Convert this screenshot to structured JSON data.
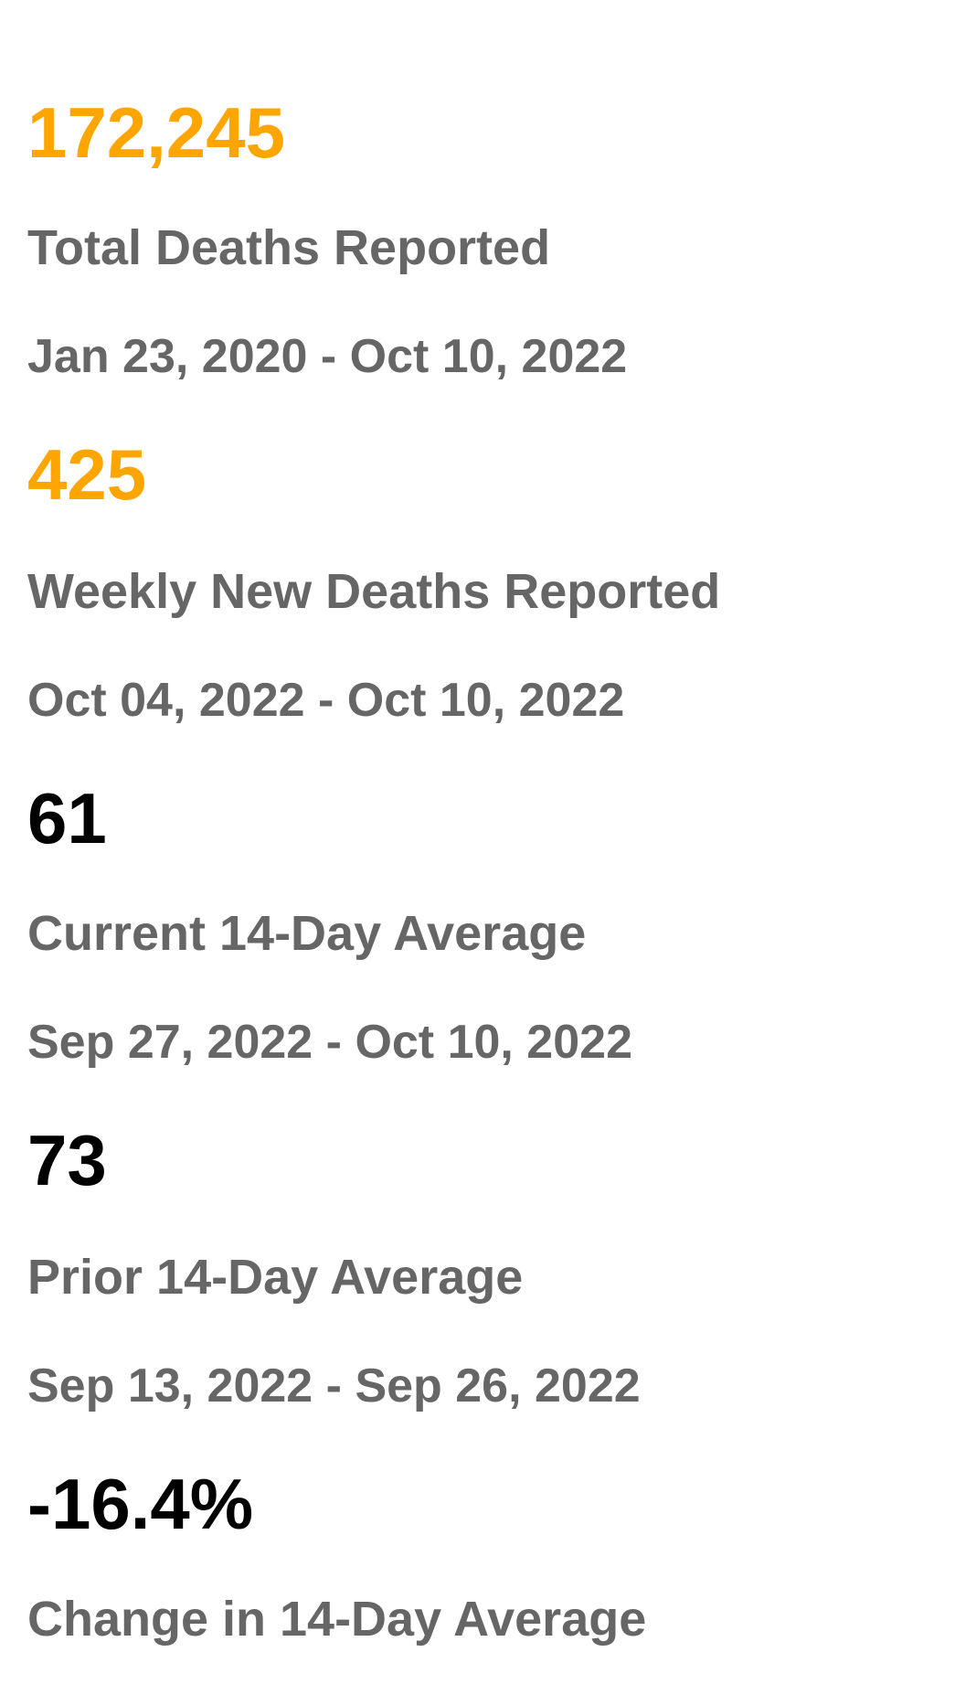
{
  "colors": {
    "highlight": "#FFA500",
    "neutral": "#000000",
    "muted": "#666666"
  },
  "stats": [
    {
      "value": "172,245",
      "label": "Total Deaths Reported",
      "range": "Jan 23, 2020 - Oct 10, 2022",
      "highlight": true
    },
    {
      "value": "425",
      "label": "Weekly New Deaths Reported",
      "range": "Oct 04, 2022 - Oct 10, 2022",
      "highlight": true
    },
    {
      "value": "61",
      "label": "Current 14-Day Average",
      "range": "Sep 27, 2022 - Oct 10, 2022",
      "highlight": false
    },
    {
      "value": "73",
      "label": "Prior 14-Day Average",
      "range": "Sep 13, 2022 - Sep 26, 2022",
      "highlight": false
    },
    {
      "value": "-16.4%",
      "label": "Change in 14-Day Average",
      "range": "",
      "highlight": false
    }
  ]
}
